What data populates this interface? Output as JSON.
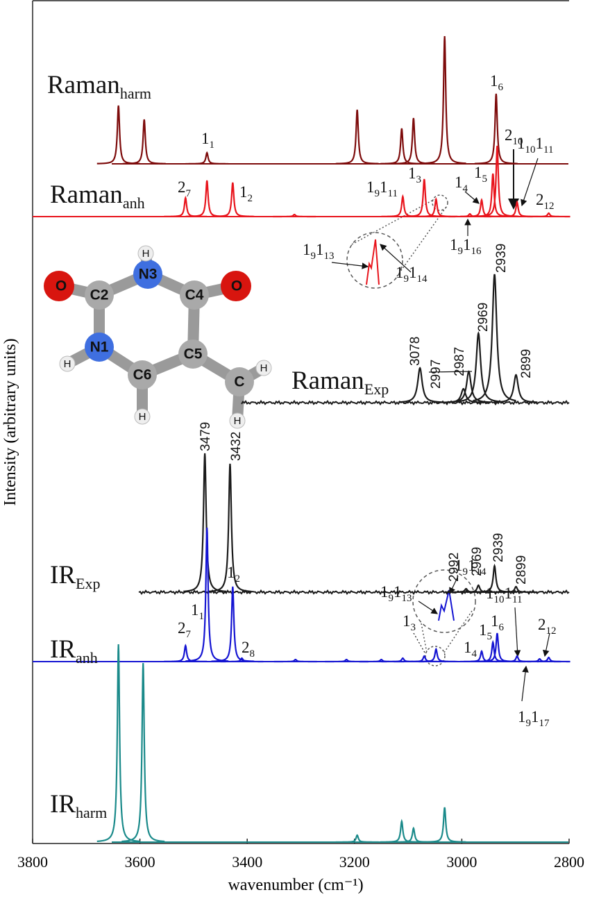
{
  "chart_data": {
    "type": "line",
    "x_label": "wavenumber (cm⁻¹)",
    "y_label": "Intensity (arbitrary units)",
    "xlim": [
      3800,
      2800
    ],
    "xticks": [
      3800,
      3600,
      3400,
      3200,
      3000,
      2800
    ],
    "series": [
      {
        "label": "Raman",
        "label_sub": "harm",
        "color": "#7d0b0b",
        "x": [
          3640,
          3592,
          3475,
          3195,
          3112,
          3090,
          3032,
          2936
        ],
        "values": [
          84,
          64,
          16,
          78,
          51,
          66,
          184,
          101
        ]
      },
      {
        "label": "Raman",
        "label_sub": "anh",
        "color": "#e8141c",
        "x": [
          3515,
          3475,
          3427,
          3312,
          3110,
          3070,
          3048,
          2985,
          2963,
          2942,
          2934,
          2897,
          2838
        ],
        "values": [
          27,
          52,
          49,
          3,
          29,
          54,
          25,
          4,
          24,
          62,
          102,
          21,
          5
        ],
        "annotations": [
          [
            "1",
            "1"
          ],
          [
            "2",
            "7"
          ],
          [
            "1",
            "2"
          ],
          [
            "1",
            "9",
            "1",
            "11"
          ],
          [
            "1",
            "3"
          ],
          [
            "1",
            "4"
          ],
          [
            "1",
            "5"
          ],
          [
            "1",
            "6"
          ],
          [
            "2",
            "10"
          ],
          [
            "1",
            "10",
            "1",
            "11"
          ],
          [
            "2",
            "12"
          ],
          [
            "1",
            "9",
            "1",
            "16"
          ],
          [
            "1",
            "9",
            "1",
            "13"
          ],
          [
            "1",
            "9",
            "1",
            "14"
          ]
        ]
      },
      {
        "label": "Raman",
        "label_sub": "Exp",
        "color": "#1a1a1a",
        "x": [
          3078,
          2997,
          2987,
          2969,
          2939,
          2899
        ],
        "values": [
          50,
          20,
          45,
          100,
          185,
          40
        ]
      },
      {
        "label": "IR",
        "label_sub": "Exp",
        "color": "#1a1a1a",
        "x": [
          3479,
          3432,
          2992,
          2969,
          2939,
          2899
        ],
        "values": [
          200,
          185,
          5,
          10,
          38,
          8
        ]
      },
      {
        "label": "IR",
        "label_sub": "anh",
        "color": "#1414d2",
        "x": [
          3515,
          3475,
          3427,
          3410,
          3310,
          3215,
          3150,
          3110,
          3070,
          3048,
          2963,
          2942,
          2934,
          2897,
          2855,
          2838
        ],
        "values": [
          23,
          193,
          108,
          5,
          3,
          3,
          3,
          5,
          8,
          18,
          15,
          28,
          41,
          8,
          4,
          6
        ],
        "annotations": [
          [
            "1",
            "1"
          ],
          [
            "1",
            "2"
          ],
          [
            "2",
            "7"
          ],
          [
            "2",
            "8"
          ],
          [
            "1",
            "9",
            "1",
            "13"
          ],
          [
            "1",
            "9",
            "1",
            "14"
          ],
          [
            "1",
            "3"
          ],
          [
            "1",
            "4"
          ],
          [
            "1",
            "5"
          ],
          [
            "1",
            "6"
          ],
          [
            "1",
            "10",
            "1",
            "11"
          ],
          [
            "2",
            "12"
          ],
          [
            "1",
            "9",
            "1",
            "17"
          ]
        ]
      },
      {
        "label": "IR",
        "label_sub": "harm",
        "color": "#1a8a8a",
        "x": [
          3640,
          3594,
          3195,
          3112,
          3090,
          3032
        ],
        "values": [
          285,
          258,
          10,
          30,
          20,
          50
        ]
      }
    ]
  },
  "molecule": {
    "atoms": [
      "O",
      "C2",
      "N3",
      "H",
      "C4",
      "O",
      "N1",
      "H",
      "C6",
      "H",
      "C5",
      "C",
      "H",
      "H"
    ]
  }
}
